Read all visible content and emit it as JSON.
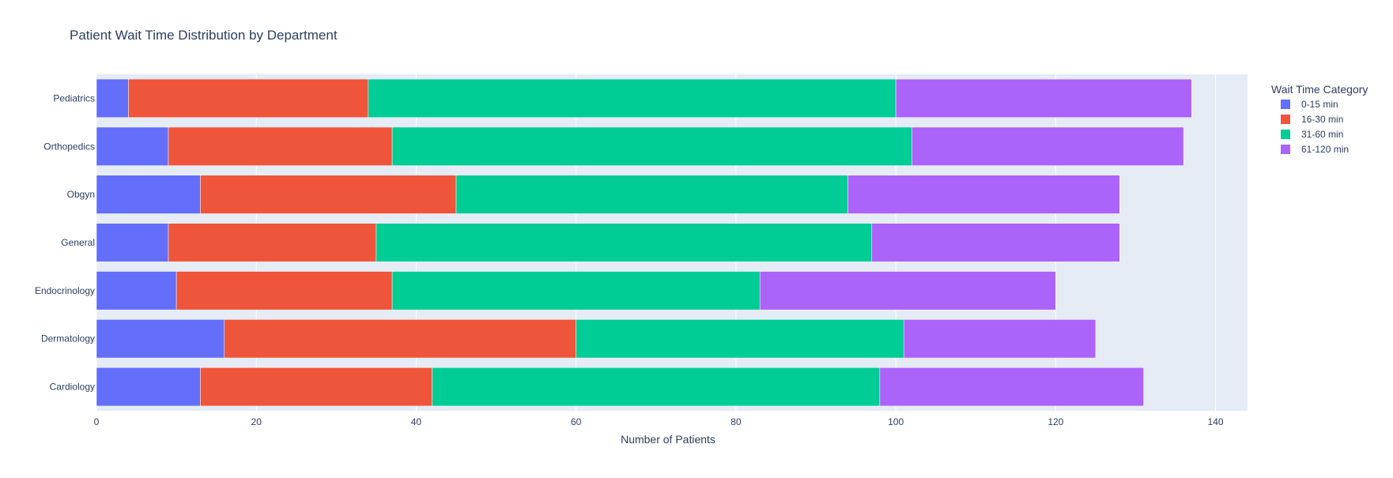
{
  "chart_data": {
    "type": "bar",
    "orientation": "horizontal",
    "barmode": "stack",
    "title": "Patient Wait Time Distribution by Department",
    "xlabel": "Number of Patients",
    "ylabel": "",
    "xlim": [
      0,
      144
    ],
    "x_ticks": [
      0,
      20,
      40,
      60,
      80,
      100,
      120,
      140
    ],
    "categories": [
      "Cardiology",
      "Dermatology",
      "Endocrinology",
      "General",
      "Obgyn",
      "Orthopedics",
      "Pediatrics"
    ],
    "legend_title": "Wait Time Category",
    "legend_position": "right",
    "grid": true,
    "series": [
      {
        "name": "0-15 min",
        "color": "#636efa",
        "values": [
          13,
          16,
          10,
          9,
          13,
          9,
          4
        ]
      },
      {
        "name": "16-30 min",
        "color": "#ef553b",
        "values": [
          29,
          44,
          27,
          26,
          32,
          28,
          30
        ]
      },
      {
        "name": "31-60 min",
        "color": "#00cc96",
        "values": [
          56,
          41,
          46,
          62,
          49,
          65,
          66
        ]
      },
      {
        "name": "61-120 min",
        "color": "#ab63fa",
        "values": [
          33,
          24,
          37,
          31,
          34,
          34,
          37
        ]
      }
    ]
  }
}
